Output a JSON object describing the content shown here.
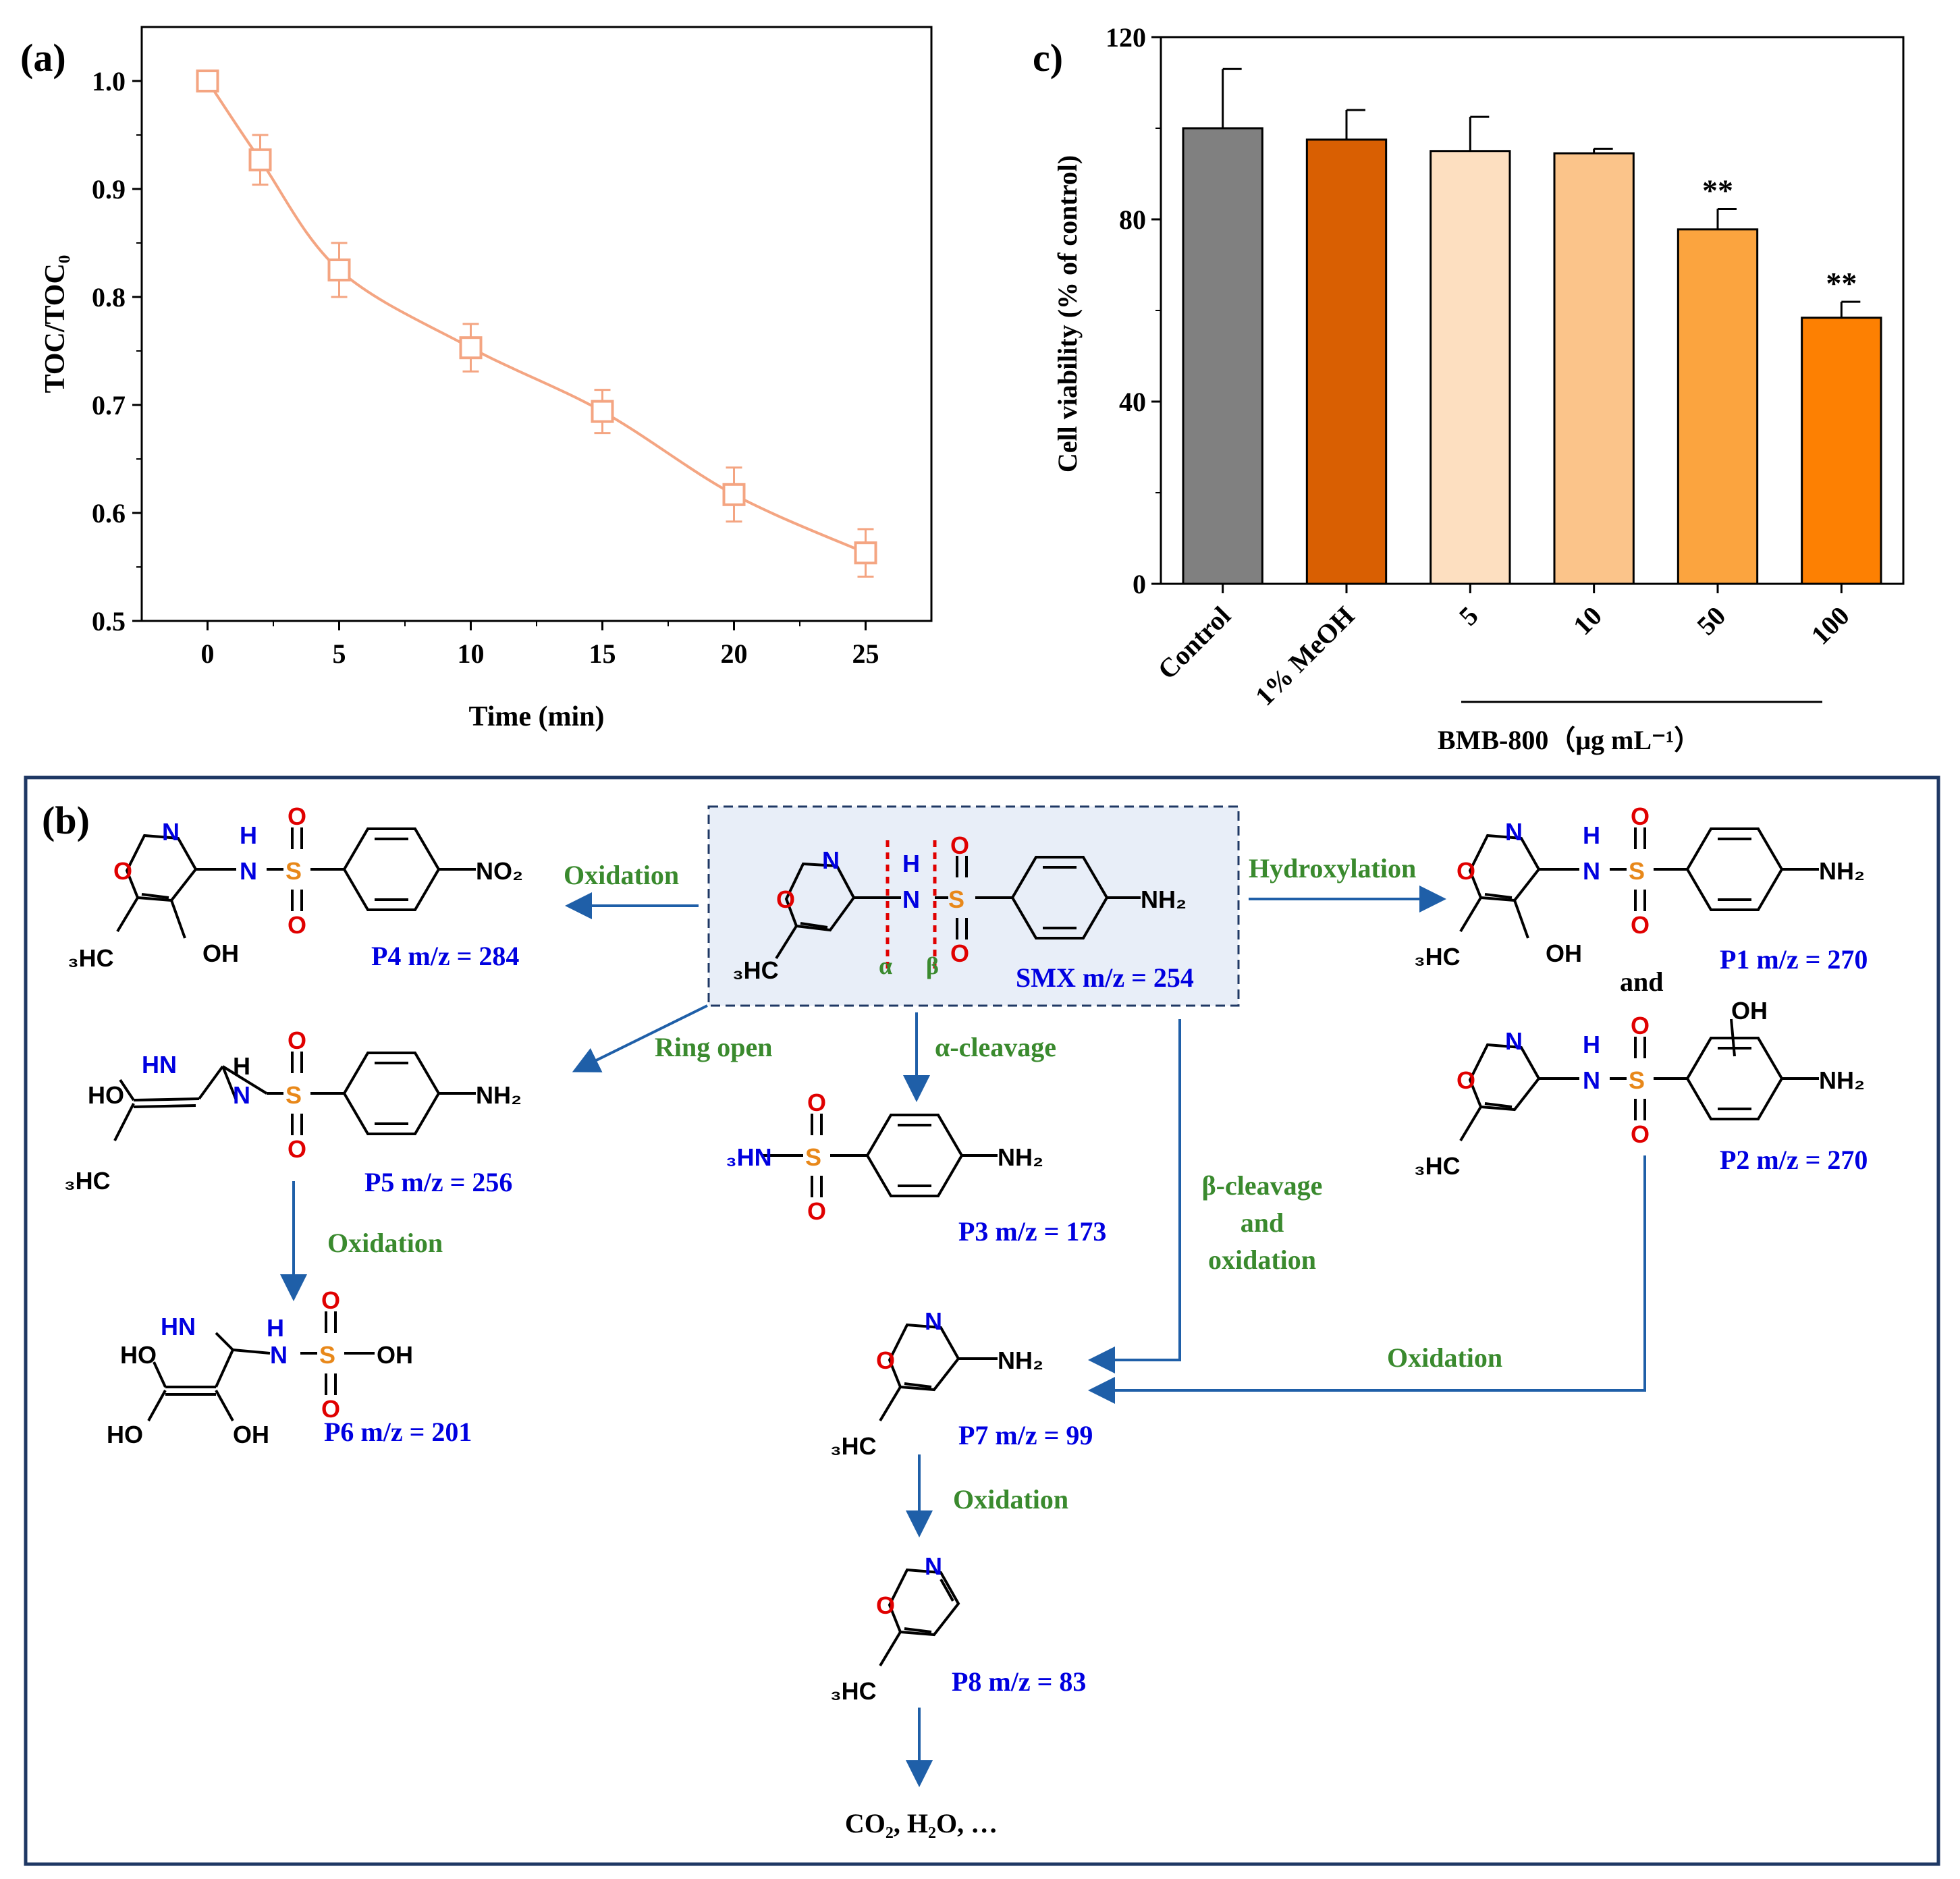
{
  "panel_a": {
    "label": "(a)"
  },
  "panel_b": {
    "label": "(b)",
    "smx_label": "SMX m/z = 254",
    "alpha": "α",
    "beta": "β",
    "products": {
      "p1": "P1 m/z = 270",
      "p2": "P2 m/z = 270",
      "p3": "P3 m/z = 173",
      "p4": "P4 m/z = 284",
      "p5": "P5 m/z = 256",
      "p6": "P6 m/z = 201",
      "p7": "P7 m/z = 99",
      "p8": "P8 m/z = 83"
    },
    "arrows": {
      "oxidation_p4": "Oxidation",
      "ring_open": "Ring open",
      "alpha_cleavage": "α-cleavage",
      "hydroxylation": "Hydroxylation",
      "beta_line1": "β-cleavage",
      "beta_line2": "and",
      "beta_line3": "oxidation",
      "oxidation_p6": "Oxidation",
      "oxidation_p2_p7": "Oxidation",
      "oxidation_p8": "Oxidation"
    },
    "and_label": "and",
    "final_products": "CO₂, H₂O, …",
    "atoms": {
      "N": "N",
      "O": "O",
      "H": "H",
      "S": "S",
      "NH2": "NH₂",
      "NO2": "NO₂",
      "OH": "OH",
      "HO": "HO",
      "H3C": "₃HC",
      "HN": "HN",
      "H3N": "₃HN"
    }
  },
  "panel_c": {
    "label": "c)",
    "sub_label": "BMB-800（μg mL⁻¹）"
  },
  "chart_data": [
    {
      "type": "line",
      "title": "",
      "xlabel": "Time (min)",
      "ylabel": "TOC/TOC₀",
      "xlim": [
        -2.5,
        27.5
      ],
      "ylim": [
        0.5,
        1.05
      ],
      "xticks": [
        "0",
        "5",
        "10",
        "15",
        "20",
        "25"
      ],
      "yticks": [
        "0.5",
        "0.6",
        "0.7",
        "0.8",
        "0.9",
        "1.0"
      ],
      "series": [
        {
          "name": "TOC/TOC0",
          "color": "#F4A582",
          "x": [
            0,
            2,
            5,
            10,
            15,
            20,
            25
          ],
          "values": [
            1.0,
            0.927,
            0.825,
            0.753,
            0.694,
            0.617,
            0.563
          ],
          "errors": [
            0.0,
            0.023,
            0.025,
            0.022,
            0.02,
            0.025,
            0.022
          ]
        }
      ]
    },
    {
      "type": "bar",
      "title": "",
      "xlabel": "BMB-800（μg mL⁻¹）",
      "ylabel": "Cell viability (% of control)",
      "ylim": [
        0,
        120
      ],
      "yticks": [
        "0",
        "40",
        "80",
        "120"
      ],
      "categories": [
        "Control",
        "1% MeOH",
        "5",
        "10",
        "50",
        "100"
      ],
      "values": [
        100,
        97.5,
        95,
        94.5,
        77.8,
        58.4
      ],
      "errors": [
        13,
        6.5,
        7.5,
        1.0,
        4.5,
        3.5
      ],
      "significance": [
        "",
        "",
        "",
        "",
        "**",
        "**"
      ],
      "colors": [
        "#808080",
        "#D95F02",
        "#FDDFC0",
        "#FBC48A",
        "#FBA43F",
        "#FD8002"
      ]
    }
  ]
}
